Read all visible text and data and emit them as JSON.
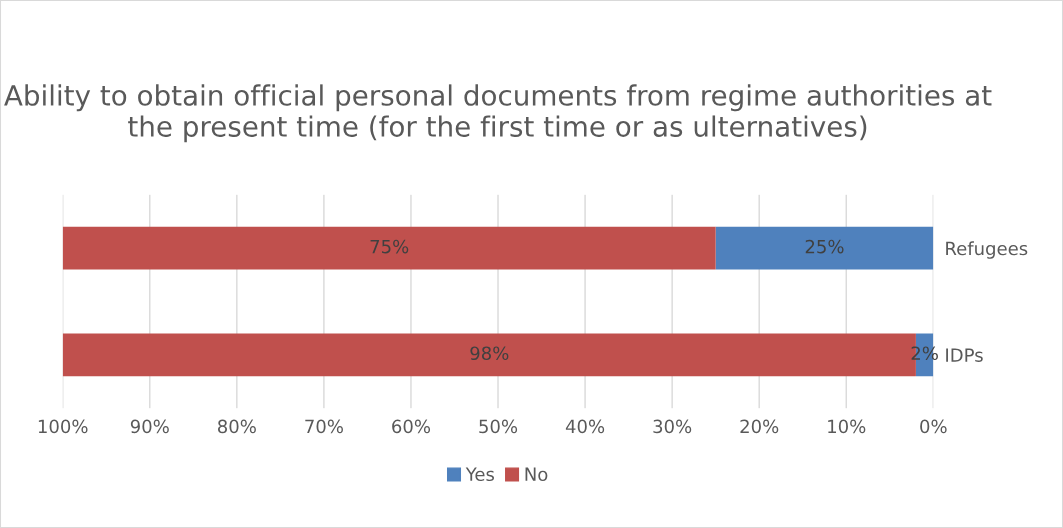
{
  "chart_data": {
    "type": "bar",
    "orientation": "horizontal",
    "stacked": true,
    "title": "Ability to obtain official personal documents from regime authorities at the present time (for the first time or as ulternatives)",
    "categories": [
      "Refugees",
      "IDPs"
    ],
    "series": [
      {
        "name": "Yes",
        "color": "#4f81bd",
        "values": [
          25,
          2
        ],
        "value_labels": [
          "25%",
          "2%"
        ]
      },
      {
        "name": "No",
        "color": "#c0504d",
        "values": [
          75,
          98
        ],
        "value_labels": [
          "75%",
          "98%"
        ]
      }
    ],
    "xlim": [
      100,
      0
    ],
    "xticks": [
      {
        "value": 100,
        "label": "100%"
      },
      {
        "value": 90,
        "label": "90%"
      },
      {
        "value": 80,
        "label": "80%"
      },
      {
        "value": 70,
        "label": "70%"
      },
      {
        "value": 60,
        "label": "60%"
      },
      {
        "value": 50,
        "label": "50%"
      },
      {
        "value": 40,
        "label": "40%"
      },
      {
        "value": 30,
        "label": "30%"
      },
      {
        "value": 20,
        "label": "20%"
      },
      {
        "value": 10,
        "label": "10%"
      },
      {
        "value": 0,
        "label": "0%"
      }
    ],
    "grid": "x",
    "legend": "bottom"
  }
}
